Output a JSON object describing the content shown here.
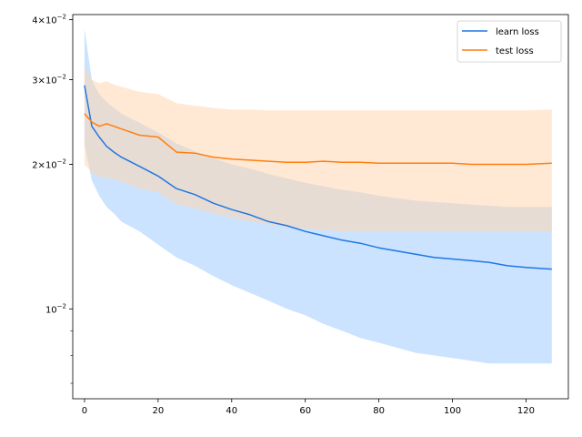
{
  "chart_data": {
    "type": "line",
    "title": "",
    "xlabel": "",
    "ylabel": "",
    "xlim": [
      -3.2,
      131.5
    ],
    "ylim": [
      0.0065,
      0.041
    ],
    "yscale": "log",
    "grid": false,
    "legend_position": "top-right",
    "x_ticks": [
      {
        "value": 0,
        "label": "0"
      },
      {
        "value": 20,
        "label": "20"
      },
      {
        "value": 40,
        "label": "40"
      },
      {
        "value": 60,
        "label": "60"
      },
      {
        "value": 80,
        "label": "80"
      },
      {
        "value": 100,
        "label": "100"
      },
      {
        "value": 120,
        "label": "120"
      }
    ],
    "y_major_ticks": [
      {
        "value": 0.01,
        "base": "10",
        "exp": "−2",
        "mant": ""
      },
      {
        "value": 0.02,
        "base": "10",
        "exp": "−2",
        "mant": "2×"
      },
      {
        "value": 0.03,
        "base": "10",
        "exp": "−2",
        "mant": "3×"
      },
      {
        "value": 0.04,
        "base": "10",
        "exp": "−2",
        "mant": "4×"
      }
    ],
    "y_minor_ticks": [
      0.007,
      0.008,
      0.009,
      0.02,
      0.03,
      0.04
    ],
    "x": [
      0,
      2,
      4,
      6,
      8,
      10,
      15,
      20,
      25,
      30,
      35,
      40,
      45,
      50,
      55,
      60,
      65,
      70,
      75,
      80,
      85,
      90,
      95,
      100,
      105,
      110,
      115,
      120,
      127
    ],
    "series": [
      {
        "name": "learn loss",
        "color": "#1f77e4",
        "band_color": "#a8d1ff",
        "values": [
          0.0292,
          0.024,
          0.0228,
          0.0218,
          0.0212,
          0.0207,
          0.0198,
          0.0189,
          0.0178,
          0.0173,
          0.0166,
          0.0161,
          0.0157,
          0.0152,
          0.0149,
          0.0145,
          0.0142,
          0.0139,
          0.0137,
          0.0134,
          0.0132,
          0.013,
          0.0128,
          0.0127,
          0.0126,
          0.0125,
          0.0123,
          0.0122,
          0.0121
        ],
        "upper": [
          0.0383,
          0.03,
          0.028,
          0.027,
          0.0262,
          0.0255,
          0.0244,
          0.0233,
          0.0221,
          0.0213,
          0.0206,
          0.02,
          0.0196,
          0.0191,
          0.0187,
          0.0183,
          0.018,
          0.0177,
          0.0175,
          0.0172,
          0.017,
          0.0168,
          0.0167,
          0.0166,
          0.0165,
          0.0164,
          0.0163,
          0.0163,
          0.0163
        ],
        "lower": [
          0.022,
          0.0185,
          0.0172,
          0.0163,
          0.0158,
          0.0152,
          0.0145,
          0.0136,
          0.0128,
          0.0123,
          0.0117,
          0.0112,
          0.0108,
          0.0104,
          0.01,
          0.0097,
          0.0093,
          0.009,
          0.0087,
          0.0085,
          0.0083,
          0.0081,
          0.008,
          0.0079,
          0.0078,
          0.0077,
          0.0077,
          0.0077,
          0.0077
        ]
      },
      {
        "name": "test loss",
        "color": "#ff7f0e",
        "band_color": "#ffd7b0",
        "values": [
          0.0255,
          0.0245,
          0.024,
          0.0243,
          0.024,
          0.0237,
          0.023,
          0.0228,
          0.0212,
          0.0211,
          0.0207,
          0.0205,
          0.0204,
          0.0203,
          0.0202,
          0.0202,
          0.0203,
          0.0202,
          0.0202,
          0.0201,
          0.0201,
          0.0201,
          0.0201,
          0.0201,
          0.02,
          0.02,
          0.02,
          0.02,
          0.0201
        ],
        "upper": [
          0.0318,
          0.03,
          0.0295,
          0.0298,
          0.0293,
          0.029,
          0.0283,
          0.028,
          0.0268,
          0.0265,
          0.0262,
          0.026,
          0.026,
          0.0259,
          0.0259,
          0.0259,
          0.0259,
          0.0259,
          0.0259,
          0.0259,
          0.0259,
          0.0259,
          0.0259,
          0.0259,
          0.0259,
          0.0259,
          0.0259,
          0.0259,
          0.026
        ],
        "lower": [
          0.02,
          0.0192,
          0.0188,
          0.0188,
          0.0186,
          0.0184,
          0.0178,
          0.0175,
          0.0165,
          0.0162,
          0.0158,
          0.0155,
          0.0152,
          0.015,
          0.0148,
          0.0147,
          0.0146,
          0.0145,
          0.0145,
          0.0145,
          0.0145,
          0.0145,
          0.0145,
          0.0145,
          0.0145,
          0.0145,
          0.0145,
          0.0145,
          0.0145
        ]
      }
    ]
  }
}
